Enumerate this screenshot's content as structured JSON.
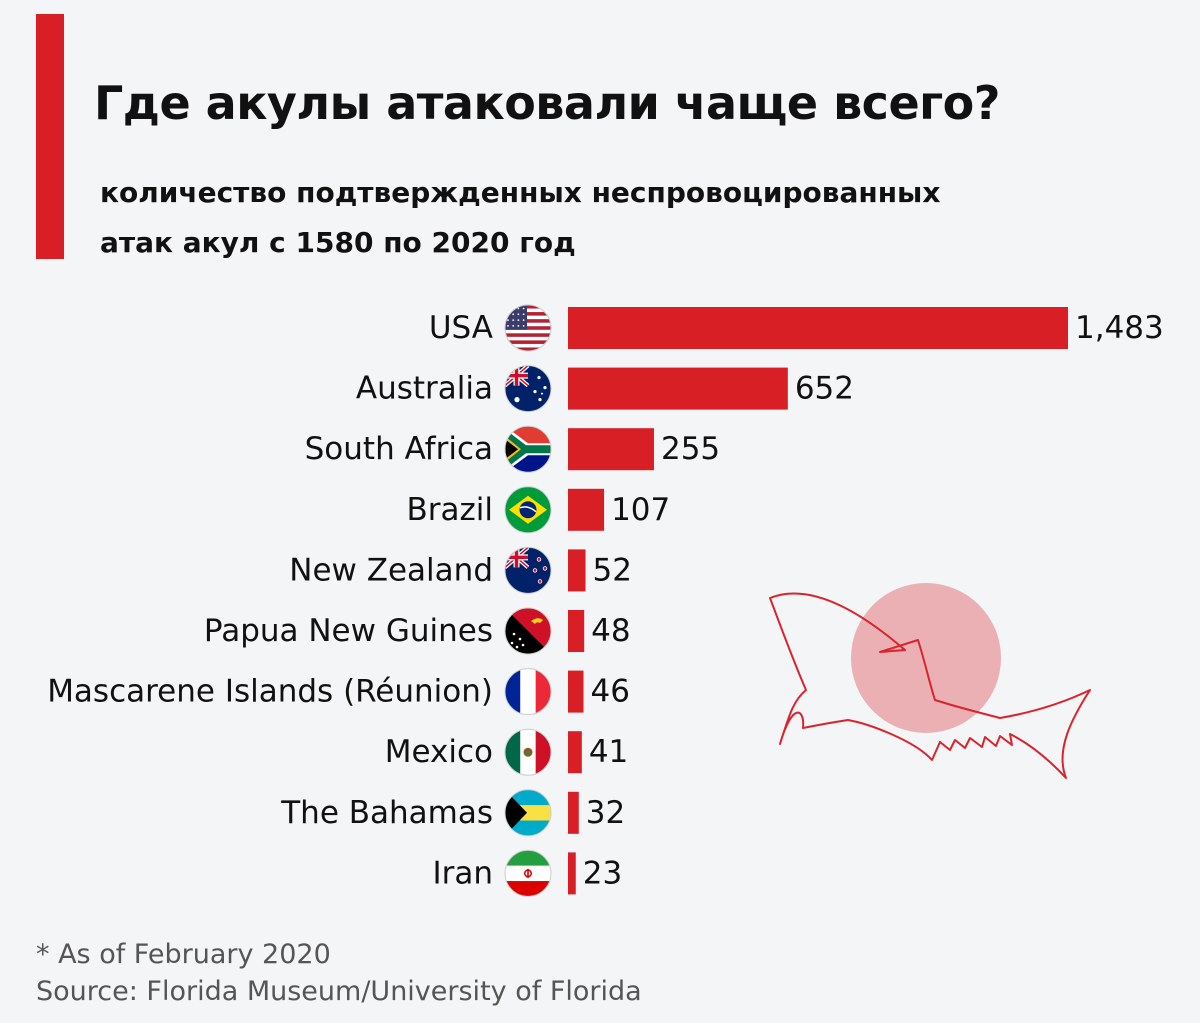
{
  "header": {
    "title": "Где акулы атаковали чаще всего?",
    "subtitle_line1": "количество подтвержденных неспровоцированных",
    "subtitle_line2": "атак акул с 1580 по 2020 год"
  },
  "footer": {
    "note": "* As of February 2020",
    "source": "Source: Florida Museum/University of Florida"
  },
  "colors": {
    "accent": "#d81f26",
    "bar": "#d81f26",
    "shark_outline": "#d9232d",
    "shark_circle": "#e8a3a8",
    "background": "#f3f5f6"
  },
  "chart_data": {
    "type": "bar",
    "orientation": "horizontal",
    "categories": [
      "USA",
      "Australia",
      "South Africa",
      "Brazil",
      "New Zealand",
      "Papua New Guines",
      "Mascarene Islands (Réunion)",
      "Mexico",
      "The Bahamas",
      "Iran"
    ],
    "values": [
      1483,
      652,
      255,
      107,
      52,
      48,
      46,
      41,
      32,
      23
    ],
    "value_labels": [
      "1,483",
      "652",
      "255",
      "107",
      "52",
      "48",
      "46",
      "41",
      "32",
      "23"
    ],
    "flag_icons": [
      "us-flag-icon",
      "australia-flag-icon",
      "south-africa-flag-icon",
      "brazil-flag-icon",
      "new-zealand-flag-icon",
      "papua-new-guinea-flag-icon",
      "france-flag-icon",
      "mexico-flag-icon",
      "bahamas-flag-icon",
      "iran-flag-icon"
    ],
    "xlim": [
      0,
      1500
    ],
    "grid": false,
    "legend": "none"
  }
}
